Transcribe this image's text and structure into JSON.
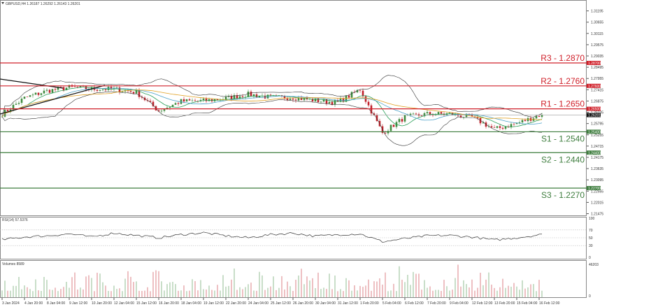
{
  "header": {
    "symbol": "GBPUSD,H4",
    "ohlc": "1.26187 1.26292 1.26143 1.26201"
  },
  "colors": {
    "resistance": "#d0202a",
    "support": "#3e7d3e",
    "bull": "#3e8a3e",
    "bear": "#c0202a",
    "ma_fast": "#2ca05a",
    "ma_mid": "#4aa0c8",
    "ma_slow": "#e0a020",
    "bands": "#333333"
  },
  "chart_data": [
    {
      "type": "candlestick",
      "title": "GBPUSD,H4",
      "y_ticks": [
        "1.31195",
        "1.30655",
        "1.30115",
        "1.29575",
        "1.29035",
        "1.28495",
        "1.27955",
        "1.27415",
        "1.26875",
        "1.26335",
        "1.25795",
        "1.25255",
        "1.24715",
        "1.24175",
        "1.23635",
        "1.23095",
        "1.22555",
        "1.22015",
        "1.21475"
      ],
      "ylim": [
        1.2144,
        1.3145
      ],
      "x_ticks": [
        "3 Jan 2024",
        "4 Jan 20:00",
        "8 Jan 04:00",
        "9 Jan 12:00",
        "10 Jan 20:00",
        "12 Jan 04:00",
        "15 Jan 12:00",
        "16 Jan 20:00",
        "18 Jan 04:00",
        "19 Jan 12:00",
        "22 Jan 20:00",
        "24 Jan 04:00",
        "25 Jan 12:00",
        "26 Jan 20:00",
        "30 Jan 04:00",
        "31 Jan 12:00",
        "1 Feb 20:00",
        "5 Feb 04:00",
        "6 Feb 12:00",
        "7 Feb 20:00",
        "9 Feb 04:00",
        "12 Feb 12:00",
        "13 Feb 20:00",
        "15 Feb 04:00",
        "16 Feb 12:00"
      ],
      "approx_close_at_ticks": [
        1.2625,
        1.2702,
        1.2736,
        1.2753,
        1.2745,
        1.2745,
        1.2729,
        1.264,
        1.2686,
        1.2688,
        1.27,
        1.272,
        1.2705,
        1.2705,
        1.269,
        1.268,
        1.2743,
        1.2535,
        1.261,
        1.2625,
        1.2625,
        1.261,
        1.2552,
        1.258,
        1.2619
      ],
      "current_price": {
        "label": "1.26201",
        "value": 1.26201
      },
      "levels": [
        {
          "name": "R3 - 1.2870",
          "value": 1.287,
          "axis_label": "1.28700",
          "kind": "resistance"
        },
        {
          "name": "R2 - 1.2760",
          "value": 1.276,
          "axis_label": "1.27600",
          "kind": "resistance"
        },
        {
          "name": "R1 - 1.2650",
          "value": 1.265,
          "axis_label": "1.26500",
          "kind": "resistance"
        },
        {
          "name": "S1 - 1.2540",
          "value": 1.254,
          "axis_label": "1.25400",
          "kind": "support"
        },
        {
          "name": "S2 - 1.2440",
          "value": 1.244,
          "axis_label": "1.24400",
          "kind": "support"
        },
        {
          "name": "S3 - 1.2270",
          "value": 1.227,
          "axis_label": "1.22700",
          "kind": "support"
        }
      ]
    },
    {
      "type": "line",
      "title": "RSI(14) 57.5376",
      "y_ticks": [
        "100",
        "70",
        "50",
        "30",
        "0"
      ],
      "ylim": [
        0,
        100
      ],
      "approx_values_at_ticks": [
        45,
        52,
        55,
        60,
        52,
        62,
        56,
        50,
        58,
        63,
        55,
        50,
        58,
        62,
        54,
        58,
        60,
        40,
        48,
        55,
        56,
        52,
        44,
        50,
        57.5
      ]
    },
    {
      "type": "bar",
      "title": "Volumes 8589",
      "y_ticks": [
        "46203",
        "0"
      ],
      "ylim": [
        0,
        46203
      ]
    }
  ]
}
